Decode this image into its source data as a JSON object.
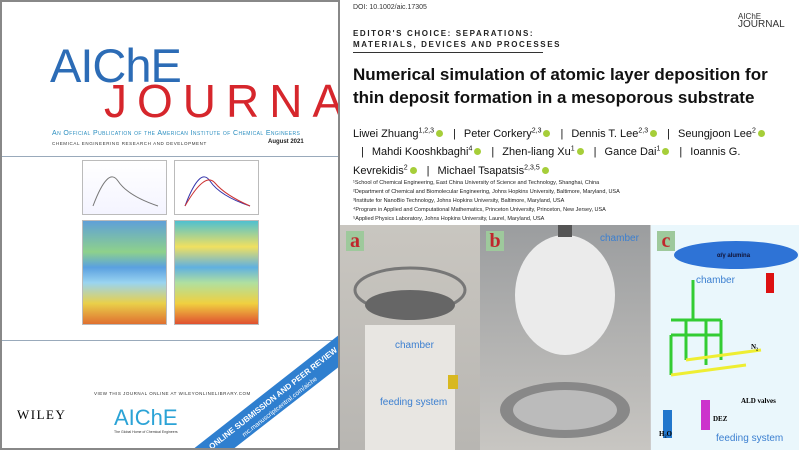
{
  "cover": {
    "brand": "AIChE",
    "journal": "JOURNAL",
    "publication": "An Official Publication of the American Institute of Chemical Engineers",
    "subtitle": "CHEMICAL ENGINEERING RESEARCH AND DEVELOPMENT",
    "issue": "August 2021",
    "view_online": "VIEW THIS JOURNAL ONLINE AT WILEYONLINELIBRARY.COM",
    "publisher": "WILEY",
    "aiche_logo": "AIChE",
    "aiche_tagline": "The Global Home of Chemical Engineers",
    "banner": "ONLINE SUBMISSION AND PEER REVIEW",
    "banner_url": "mc.manuscriptcentral.com/aiche"
  },
  "article": {
    "doi": "DOI: 10.1002/aic.17305",
    "logo_top": "AIChE",
    "logo_bottom": "JOURNAL",
    "section_line1": "EDITOR'S CHOICE: SEPARATIONS:",
    "section_line2": "MATERIALS, DEVICES AND PROCESSES",
    "title": "Numerical simulation of atomic layer deposition for thin deposit formation in a mesoporous substrate",
    "authors": [
      {
        "name": "Liwei Zhuang",
        "sup": "1,2,3"
      },
      {
        "name": "Peter Corkery",
        "sup": "2,3"
      },
      {
        "name": "Dennis T. Lee",
        "sup": "2,3"
      },
      {
        "name": "Seungjoon Lee",
        "sup": "2"
      },
      {
        "name": "Mahdi Kooshkbaghi",
        "sup": "4"
      },
      {
        "name": "Zhen-liang Xu",
        "sup": "1"
      },
      {
        "name": "Gance Dai",
        "sup": "1"
      },
      {
        "name": "Ioannis G. Kevrekidis",
        "sup": "2"
      },
      {
        "name": "Michael Tsapatsis",
        "sup": "2,3,5"
      }
    ],
    "affiliations": [
      "¹School of Chemical Engineering, East China University of Science and Technology, Shanghai, China",
      "²Department of Chemical and Biomolecular Engineering, Johns Hopkins University, Baltimore, Maryland, USA",
      "³Institute for NanoBio Technology, Johns Hopkins University, Baltimore, Maryland, USA",
      "⁴Program in Applied and Computational Mathematics, Princeton University, Princeton, New Jersey, USA",
      "⁵Applied Physics Laboratory, Johns Hopkins University, Laurel, Maryland, USA"
    ]
  },
  "photos": {
    "a": {
      "label": "a",
      "chamber": "chamber",
      "feeding": "feeding system"
    },
    "b": {
      "label": "b",
      "chamber": "chamber"
    },
    "c": {
      "label": "c",
      "alumina": "α/γ alumina",
      "chamber": "chamber",
      "n2": "N₂",
      "valves": "ALD valves",
      "dez": "DEZ",
      "h2o": "H₂O",
      "feeding": "feeding system"
    }
  }
}
